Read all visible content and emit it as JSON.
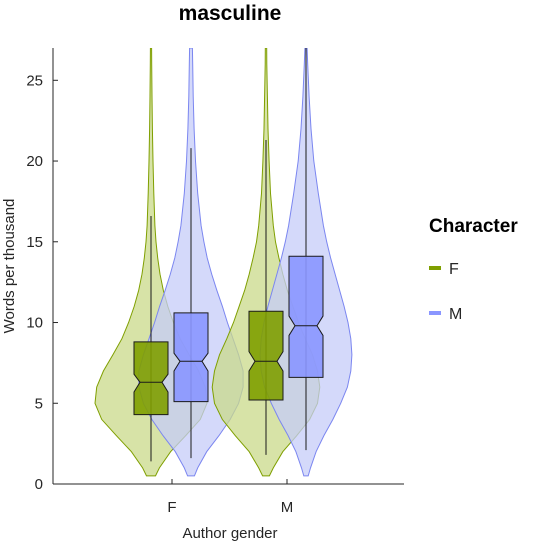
{
  "chart_data": {
    "type": "violin",
    "title": "masculine",
    "xlabel": "Author gender",
    "ylabel": "Words per thousand",
    "ylim": [
      0,
      27
    ],
    "yticks": [
      0,
      5,
      10,
      15,
      20,
      25
    ],
    "categories": [
      "F",
      "M"
    ],
    "legend": {
      "title": "Character",
      "position": "right",
      "items": [
        {
          "label": "F",
          "color": "#7f9f00"
        },
        {
          "label": "M",
          "color": "#8a96ff"
        }
      ]
    },
    "groups": [
      {
        "category": "F",
        "character": "F",
        "color": "#7f9f00",
        "fill": "#c9d98a",
        "box": {
          "q1": 4.3,
          "median": 6.3,
          "q3": 8.8,
          "notch_low": 5.7,
          "notch_high": 6.8
        },
        "whisker": {
          "low": 1.4,
          "high": 16.6
        },
        "violin": {
          "y": [
            0.5,
            1.0,
            2.0,
            3.0,
            4.0,
            5.0,
            6.0,
            7.0,
            8.0,
            9.0,
            10.0,
            11.0,
            12.0,
            13.0,
            14.0,
            15.0,
            16.0,
            18.0,
            20.0,
            22.0,
            24.0,
            26.0,
            27.0
          ],
          "density": [
            0.08,
            0.15,
            0.35,
            0.62,
            0.88,
            1.0,
            0.97,
            0.85,
            0.68,
            0.52,
            0.4,
            0.3,
            0.22,
            0.16,
            0.12,
            0.09,
            0.07,
            0.05,
            0.035,
            0.025,
            0.018,
            0.012,
            0.01
          ]
        }
      },
      {
        "category": "F",
        "character": "M",
        "color": "#7b86f0",
        "fill": "#c6ccf8",
        "box": {
          "q1": 5.1,
          "median": 7.6,
          "q3": 10.6,
          "notch_low": 7.0,
          "notch_high": 8.1
        },
        "whisker": {
          "low": 1.6,
          "high": 20.8
        },
        "violin": {
          "y": [
            0.5,
            1.0,
            2.0,
            3.0,
            4.0,
            5.0,
            6.0,
            7.0,
            8.0,
            9.0,
            10.0,
            11.0,
            12.0,
            13.0,
            14.0,
            15.0,
            16.0,
            18.0,
            20.0,
            22.0,
            24.0,
            26.0,
            27.0
          ],
          "density": [
            0.06,
            0.12,
            0.28,
            0.5,
            0.7,
            0.85,
            0.93,
            0.93,
            0.85,
            0.75,
            0.65,
            0.56,
            0.46,
            0.37,
            0.29,
            0.23,
            0.18,
            0.12,
            0.08,
            0.055,
            0.04,
            0.03,
            0.025
          ]
        }
      },
      {
        "category": "M",
        "character": "F",
        "color": "#7f9f00",
        "fill": "#c9d98a",
        "box": {
          "q1": 5.2,
          "median": 7.6,
          "q3": 10.7,
          "notch_low": 7.0,
          "notch_high": 8.2
        },
        "whisker": {
          "low": 1.8,
          "high": 21.3
        },
        "violin": {
          "y": [
            0.5,
            1.0,
            2.0,
            3.0,
            4.0,
            5.0,
            6.0,
            7.0,
            8.0,
            9.0,
            10.0,
            11.0,
            12.0,
            13.0,
            14.0,
            15.0,
            16.0,
            18.0,
            20.0,
            22.0,
            24.0,
            26.0,
            27.0
          ],
          "density": [
            0.06,
            0.13,
            0.3,
            0.55,
            0.78,
            0.92,
            0.96,
            0.92,
            0.83,
            0.7,
            0.58,
            0.48,
            0.38,
            0.3,
            0.23,
            0.17,
            0.13,
            0.08,
            0.055,
            0.035,
            0.025,
            0.015,
            0.012
          ]
        }
      },
      {
        "category": "M",
        "character": "M",
        "color": "#7b86f0",
        "fill": "#c6ccf8",
        "box": {
          "q1": 6.6,
          "median": 9.8,
          "q3": 14.1,
          "notch_low": 9.2,
          "notch_high": 10.4
        },
        "whisker": {
          "low": 2.1,
          "high": 27.0
        },
        "violin": {
          "y": [
            0.5,
            1.0,
            2.0,
            3.0,
            4.0,
            5.0,
            6.0,
            7.0,
            8.0,
            9.0,
            10.0,
            11.0,
            12.0,
            13.0,
            14.0,
            15.0,
            16.0,
            18.0,
            20.0,
            22.0,
            24.0,
            26.0,
            27.0
          ],
          "density": [
            0.04,
            0.08,
            0.18,
            0.32,
            0.48,
            0.62,
            0.74,
            0.8,
            0.82,
            0.8,
            0.75,
            0.68,
            0.6,
            0.52,
            0.44,
            0.37,
            0.31,
            0.22,
            0.14,
            0.09,
            0.055,
            0.03,
            0.02
          ]
        }
      }
    ]
  }
}
